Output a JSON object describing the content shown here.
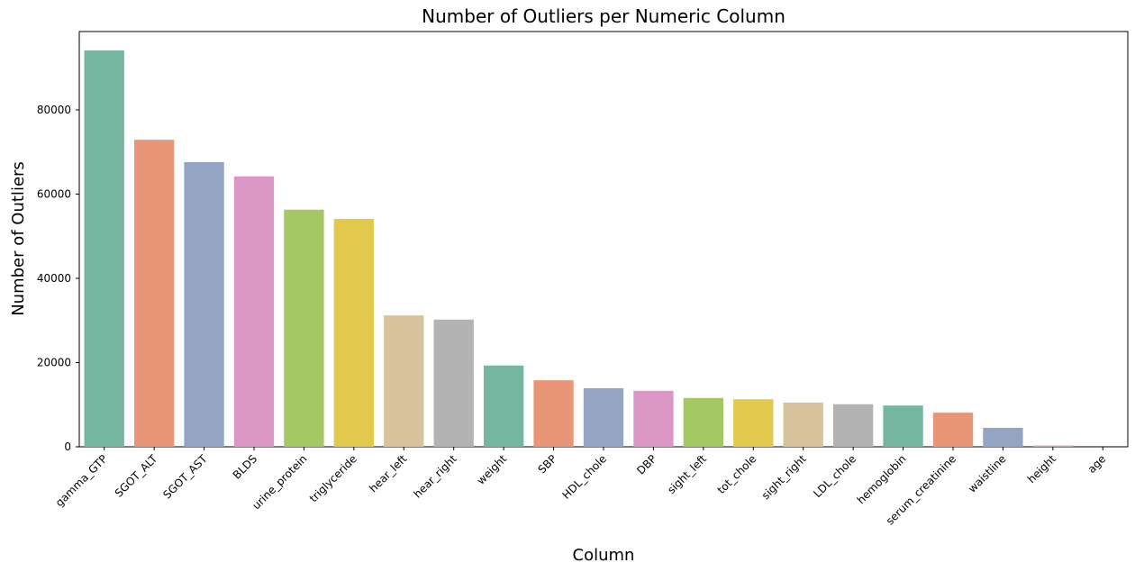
{
  "chart_data": {
    "type": "bar",
    "title": "Number of Outliers per Numeric Column",
    "x_label": "Column",
    "y_label": "Number of Outliers",
    "categories": [
      "gamma_GTP",
      "SGOT_ALT",
      "SGOT_AST",
      "BLDS",
      "urine_protein",
      "triglyceride",
      "hear_left",
      "hear_right",
      "weight",
      "SBP",
      "HDL_chole",
      "DBP",
      "sight_left",
      "tot_chole",
      "sight_right",
      "LDL_chole",
      "hemoglobin",
      "serum_creatinine",
      "waistline",
      "height",
      "age"
    ],
    "values": [
      94100,
      72900,
      67600,
      64200,
      56300,
      54100,
      31200,
      30200,
      19300,
      15800,
      13900,
      13300,
      11600,
      11300,
      10500,
      10100,
      9800,
      8100,
      4500,
      300,
      0
    ],
    "colors": [
      "#75b6a0",
      "#e99678",
      "#94a5c4",
      "#db97c3",
      "#a3c864",
      "#e3c94b",
      "#d9c39f",
      "#b3b3b3"
    ],
    "ylim": [
      0,
      98600
    ],
    "yticks": [
      0,
      20000,
      40000,
      60000,
      80000
    ],
    "grid": false
  }
}
